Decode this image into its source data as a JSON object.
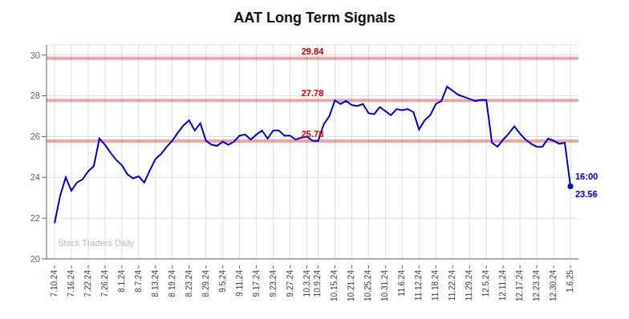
{
  "chart_data": {
    "type": "line",
    "title": "AAT Long Term Signals",
    "categories": [
      "7.10.24",
      null,
      null,
      "7.16.24",
      null,
      null,
      "7.22.24",
      null,
      null,
      "7.26.24",
      null,
      null,
      "8.1.24",
      null,
      null,
      "8.7.24",
      null,
      null,
      "8.13.24",
      null,
      null,
      "8.19.24",
      null,
      null,
      "8.23.24",
      null,
      null,
      "8.29.24",
      null,
      null,
      "9.5.24",
      null,
      null,
      "9.11.24",
      null,
      null,
      "9.17.24",
      null,
      null,
      "9.23.24",
      null,
      null,
      "9.27.24",
      null,
      null,
      "10.3.24",
      null,
      "10.9.24",
      null,
      null,
      "10.15.24",
      null,
      null,
      "10.21.24",
      null,
      null,
      "10.25.24",
      null,
      null,
      "10.31.24",
      null,
      null,
      "11.6.24",
      null,
      null,
      "11.12.24",
      null,
      null,
      "11.18.24",
      null,
      null,
      "11.22.24",
      null,
      null,
      "11.29.24",
      null,
      null,
      "12.5.24",
      null,
      null,
      "12.11.24",
      null,
      null,
      "12.17.24",
      null,
      null,
      "12.23.24",
      null,
      null,
      "12.30.24",
      null,
      null,
      "1.6.25"
    ],
    "values": [
      21.75,
      23.1,
      24.0,
      23.35,
      23.75,
      23.9,
      24.3,
      24.55,
      25.9,
      25.6,
      25.2,
      24.85,
      24.6,
      24.15,
      23.95,
      24.05,
      23.75,
      24.35,
      24.9,
      25.15,
      25.5,
      25.8,
      26.2,
      26.55,
      26.8,
      26.3,
      26.65,
      25.8,
      25.6,
      25.55,
      25.75,
      25.6,
      25.75,
      26.05,
      26.1,
      25.85,
      26.1,
      26.3,
      25.9,
      26.3,
      26.3,
      26.05,
      26.05,
      25.85,
      25.95,
      26.0,
      25.8,
      25.78,
      26.6,
      27.0,
      27.78,
      27.6,
      27.75,
      27.55,
      27.5,
      27.6,
      27.15,
      27.1,
      27.45,
      27.25,
      27.05,
      27.35,
      27.3,
      27.35,
      27.2,
      26.35,
      26.8,
      27.05,
      27.6,
      27.75,
      28.45,
      28.25,
      28.05,
      27.95,
      27.85,
      27.75,
      27.8,
      27.8,
      25.7,
      25.5,
      25.85,
      26.15,
      26.5,
      26.15,
      25.85,
      25.65,
      25.5,
      25.5,
      25.9,
      25.8,
      25.65,
      25.7,
      23.56
    ],
    "color": "#0000cc",
    "ylim": [
      20,
      30.5
    ],
    "yticks": [
      20,
      22,
      24,
      26,
      28,
      30
    ],
    "grid": true,
    "reference_lines": [
      {
        "value": 29.84,
        "label": "29.84",
        "color": "#cc0000"
      },
      {
        "value": 27.78,
        "label": "27.78",
        "color": "#cc0000"
      },
      {
        "value": 25.78,
        "label": "25.78",
        "color": "#cc0000"
      }
    ],
    "endpoint_labels": [
      "16:00",
      "23.56"
    ],
    "watermark": "Stock Traders Daily"
  }
}
